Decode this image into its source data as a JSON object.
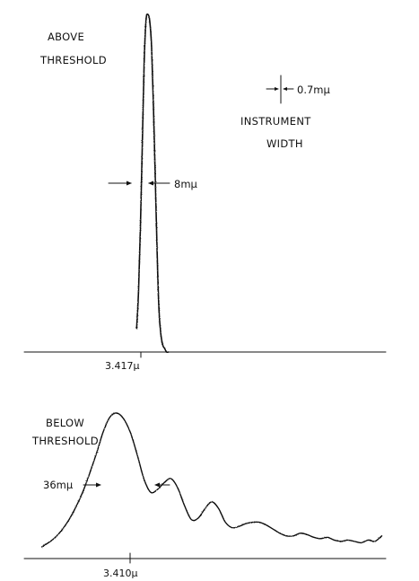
{
  "chart_data": [
    {
      "type": "line",
      "title": "ABOVE THRESHOLD",
      "xlabel": "",
      "ylabel": "",
      "grid": false,
      "peak_wavelength_label": "3.417μ",
      "linewidth_annotation": "8mμ",
      "instrument_width_value": "0.7mμ",
      "instrument_width_label": "INSTRUMENT WIDTH",
      "x_unit": "mμ relative to 3.417μ",
      "xlim": [
        -68,
        125
      ],
      "ylim": [
        0,
        1
      ],
      "series": [
        {
          "x": [
            -8,
            -7,
            -6,
            -5,
            -4,
            -3,
            -2,
            -1,
            0,
            1,
            2,
            3,
            4,
            5,
            6,
            7,
            8,
            9
          ],
          "values": [
            0.07,
            0.18,
            0.37,
            0.6,
            0.85,
            0.98,
            1.0,
            0.98,
            0.9,
            0.72,
            0.5,
            0.28,
            0.12,
            0.05,
            0.02,
            0.01,
            0.0,
            0.0
          ]
        }
      ]
    },
    {
      "type": "line",
      "title": "BELOW THRESHOLD",
      "xlabel": "",
      "ylabel": "",
      "grid": false,
      "peak_wavelength_label": "3.410μ",
      "linewidth_annotation": "36mμ",
      "x_unit": "mμ relative to 3.410μ",
      "xlim": [
        -68,
        198
      ],
      "ylim": [
        0,
        1
      ],
      "series": [
        {
          "x": [
            -55,
            -45,
            -35,
            -25,
            -15,
            -10,
            -5,
            0,
            5,
            10,
            15,
            20,
            25,
            30,
            35,
            40,
            45,
            50,
            55,
            60,
            65,
            70,
            75,
            80,
            85,
            90,
            95,
            100,
            105,
            110,
            115,
            120,
            125,
            130,
            135,
            140,
            145,
            150,
            155,
            160,
            165,
            170,
            175,
            180,
            185,
            190,
            195
          ],
          "values": [
            0.02,
            0.09,
            0.22,
            0.42,
            0.7,
            0.86,
            0.97,
            1.0,
            0.96,
            0.86,
            0.7,
            0.52,
            0.42,
            0.44,
            0.49,
            0.52,
            0.45,
            0.32,
            0.22,
            0.23,
            0.3,
            0.35,
            0.3,
            0.2,
            0.16,
            0.17,
            0.19,
            0.2,
            0.2,
            0.18,
            0.15,
            0.12,
            0.1,
            0.1,
            0.12,
            0.11,
            0.09,
            0.08,
            0.09,
            0.07,
            0.06,
            0.07,
            0.06,
            0.05,
            0.07,
            0.06,
            0.1
          ]
        }
      ]
    }
  ]
}
